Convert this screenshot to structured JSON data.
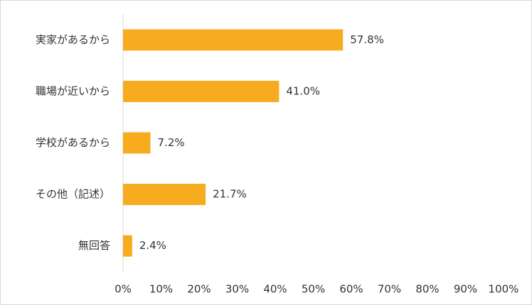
{
  "chart_data": {
    "type": "bar",
    "orientation": "horizontal",
    "categories": [
      "実家があるから",
      "職場が近いから",
      "学校があるから",
      "その他（記述）",
      "無回答"
    ],
    "values": [
      57.8,
      41.0,
      7.2,
      21.7,
      2.4
    ],
    "value_labels": [
      "57.8%",
      "41.0%",
      "7.2%",
      "21.7%",
      "2.4%"
    ],
    "color": "#f6ac1e",
    "xlim": [
      0,
      100
    ],
    "xticks": [
      {
        "value": 0,
        "label": "0%"
      },
      {
        "value": 10,
        "label": "10%"
      },
      {
        "value": 20,
        "label": "20%"
      },
      {
        "value": 30,
        "label": "30%"
      },
      {
        "value": 40,
        "label": "40%"
      },
      {
        "value": 50,
        "label": "50%"
      },
      {
        "value": 60,
        "label": "60%"
      },
      {
        "value": 70,
        "label": "70%"
      },
      {
        "value": 80,
        "label": "80%"
      },
      {
        "value": 90,
        "label": "90%"
      },
      {
        "value": 100,
        "label": "100%"
      }
    ],
    "grid": false
  }
}
